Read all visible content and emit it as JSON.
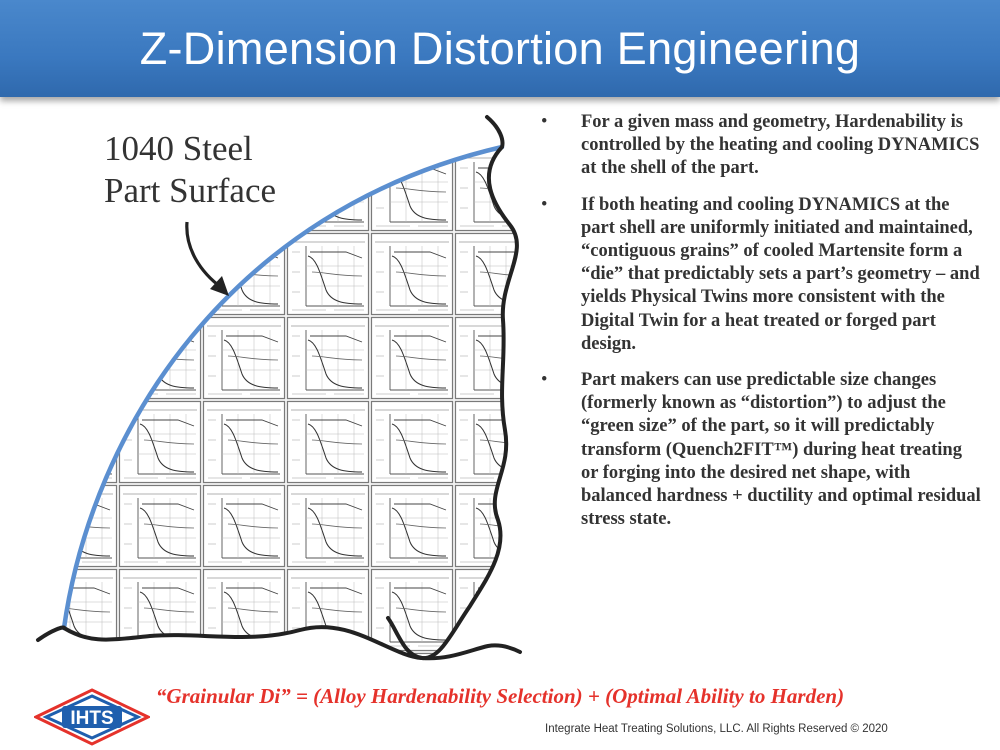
{
  "header": {
    "title": "Z-Dimension Distortion Engineering"
  },
  "diagram": {
    "caption_line1": "1040 Steel",
    "caption_line2": "Part Surface"
  },
  "bullets": [
    {
      "marker": "•",
      "text": "For a given mass and geometry, Hardenability is controlled by the heating and cooling DYNAMICS at the shell of the part."
    },
    {
      "marker": "•",
      "text": "If both heating and cooling DYNAMICS at the part shell are uniformly initiated and maintained, “contiguous grains” of cooled Martensite form a “die” that predictably sets a part’s geometry – and yields Physical Twins more consistent with the Digital Twin for a heat treated or forged part design."
    },
    {
      "marker": "•",
      "text": "Part makers can use predictable size changes (formerly known as “distortion”) to adjust the “green size” of the part, so it will predictably transform (Quench2FIT™) during heat treating or forging into the desired net shape, with balanced hardness + ductility and optimal residual stress state."
    }
  ],
  "formula": "“Grainular Di” = (Alloy Hardenability Selection) + (Optimal Ability to Harden)",
  "logo": {
    "text": "IHTS"
  },
  "footer": {
    "copyright": "Integrate Heat Treating Solutions, LLC.   All Rights Reserved © 2020"
  },
  "colors": {
    "title_bar": "#3a78bf",
    "surface_line": "#5b8fd0",
    "formula": "#e5322b",
    "logo_blue": "#1f5fae",
    "logo_red": "#e5322b"
  }
}
